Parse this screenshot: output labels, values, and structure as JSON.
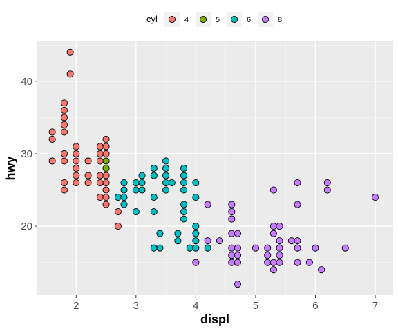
{
  "chart_data": {
    "type": "scatter",
    "xlabel": "displ",
    "ylabel": "hwy",
    "xlim": [
      1.35,
      7.3
    ],
    "ylim": [
      10.5,
      45.5
    ],
    "x_ticks": [
      2,
      3,
      4,
      5,
      6,
      7
    ],
    "y_ticks": [
      20,
      30,
      40
    ],
    "grid": true,
    "legend": {
      "title": "cyl",
      "position": "top"
    },
    "series": [
      {
        "name": "4",
        "color": "#F8766D",
        "points": [
          [
            1.6,
            33
          ],
          [
            1.6,
            32
          ],
          [
            1.6,
            29
          ],
          [
            1.8,
            37
          ],
          [
            1.8,
            36
          ],
          [
            1.8,
            35
          ],
          [
            1.8,
            34
          ],
          [
            1.8,
            33
          ],
          [
            1.8,
            30
          ],
          [
            1.8,
            29
          ],
          [
            1.8,
            26
          ],
          [
            1.8,
            25
          ],
          [
            1.9,
            44
          ],
          [
            1.9,
            41
          ],
          [
            2.0,
            31
          ],
          [
            2.0,
            30
          ],
          [
            2.0,
            29
          ],
          [
            2.0,
            28
          ],
          [
            2.0,
            27
          ],
          [
            2.0,
            26
          ],
          [
            2.2,
            29
          ],
          [
            2.2,
            27
          ],
          [
            2.2,
            26
          ],
          [
            2.4,
            31
          ],
          [
            2.4,
            30
          ],
          [
            2.4,
            29
          ],
          [
            2.4,
            27
          ],
          [
            2.4,
            26
          ],
          [
            2.4,
            24
          ],
          [
            2.5,
            32
          ],
          [
            2.5,
            31
          ],
          [
            2.5,
            30
          ],
          [
            2.5,
            27
          ],
          [
            2.5,
            26
          ],
          [
            2.5,
            25
          ],
          [
            2.5,
            24
          ],
          [
            2.5,
            23
          ],
          [
            2.7,
            22
          ],
          [
            2.7,
            20
          ]
        ]
      },
      {
        "name": "5",
        "color": "#7CAE00",
        "points": [
          [
            2.5,
            29
          ],
          [
            2.5,
            28
          ]
        ]
      },
      {
        "name": "6",
        "color": "#00BFC4",
        "points": [
          [
            2.7,
            24
          ],
          [
            2.8,
            26
          ],
          [
            2.8,
            25
          ],
          [
            2.8,
            24
          ],
          [
            2.8,
            23
          ],
          [
            3.0,
            26
          ],
          [
            3.0,
            25
          ],
          [
            3.0,
            22
          ],
          [
            3.1,
            27
          ],
          [
            3.1,
            26
          ],
          [
            3.1,
            25
          ],
          [
            3.3,
            28
          ],
          [
            3.3,
            27
          ],
          [
            3.3,
            24
          ],
          [
            3.3,
            22
          ],
          [
            3.3,
            17
          ],
          [
            3.4,
            19
          ],
          [
            3.4,
            17
          ],
          [
            3.5,
            29
          ],
          [
            3.5,
            28
          ],
          [
            3.5,
            27
          ],
          [
            3.5,
            26
          ],
          [
            3.5,
            25
          ],
          [
            3.6,
            26
          ],
          [
            3.7,
            19
          ],
          [
            3.7,
            18
          ],
          [
            3.8,
            28
          ],
          [
            3.8,
            27
          ],
          [
            3.8,
            26
          ],
          [
            3.8,
            25
          ],
          [
            3.8,
            23
          ],
          [
            3.8,
            22
          ],
          [
            3.8,
            21
          ],
          [
            3.9,
            17
          ],
          [
            4.0,
            26
          ],
          [
            4.0,
            24
          ],
          [
            4.0,
            20
          ],
          [
            4.0,
            19
          ],
          [
            4.0,
            18
          ],
          [
            4.0,
            17
          ],
          [
            4.2,
            17
          ]
        ]
      },
      {
        "name": "8",
        "color": "#C77CFF",
        "points": [
          [
            4.0,
            15
          ],
          [
            4.2,
            18
          ],
          [
            4.2,
            23
          ],
          [
            4.4,
            18
          ],
          [
            4.6,
            23
          ],
          [
            4.6,
            22
          ],
          [
            4.6,
            21
          ],
          [
            4.6,
            19
          ],
          [
            4.6,
            17
          ],
          [
            4.6,
            16
          ],
          [
            4.6,
            15
          ],
          [
            4.7,
            19
          ],
          [
            4.7,
            17
          ],
          [
            4.7,
            16
          ],
          [
            4.7,
            15
          ],
          [
            4.7,
            12
          ],
          [
            5.0,
            17
          ],
          [
            5.2,
            17
          ],
          [
            5.2,
            16
          ],
          [
            5.2,
            15
          ],
          [
            5.3,
            25
          ],
          [
            5.3,
            20
          ],
          [
            5.3,
            19
          ],
          [
            5.3,
            15
          ],
          [
            5.3,
            14
          ],
          [
            5.4,
            20
          ],
          [
            5.4,
            18
          ],
          [
            5.4,
            17
          ],
          [
            5.4,
            16
          ],
          [
            5.4,
            15
          ],
          [
            5.6,
            18
          ],
          [
            5.7,
            26
          ],
          [
            5.7,
            23
          ],
          [
            5.7,
            18
          ],
          [
            5.7,
            17
          ],
          [
            5.7,
            15
          ],
          [
            5.9,
            15
          ],
          [
            6.0,
            17
          ],
          [
            6.1,
            14
          ],
          [
            6.2,
            26
          ],
          [
            6.2,
            25
          ],
          [
            6.5,
            17
          ],
          [
            7.0,
            24
          ]
        ]
      }
    ]
  }
}
